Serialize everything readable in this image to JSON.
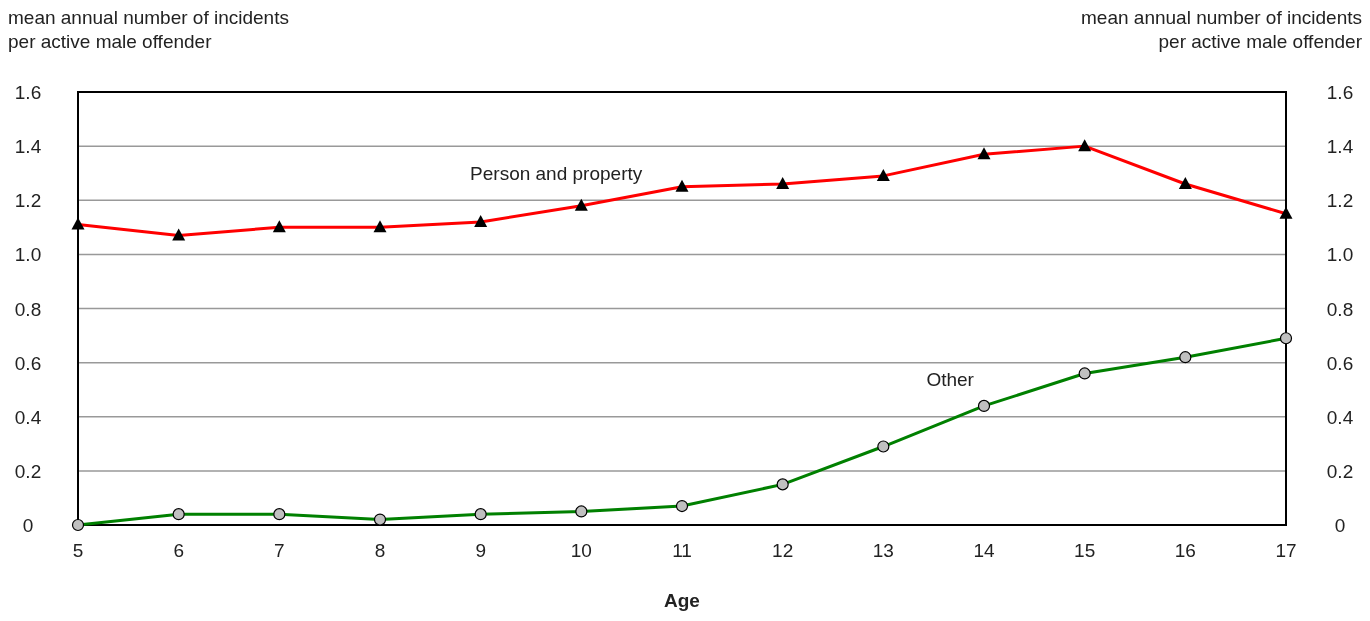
{
  "chart_data": {
    "type": "line",
    "xlabel": "Age",
    "ylabel": "mean annual number of incidents\nper active male offender",
    "y2label": "mean annual number of incidents\nper active male offender",
    "x": [
      5,
      6,
      7,
      8,
      9,
      10,
      11,
      12,
      13,
      14,
      15,
      16,
      17
    ],
    "series": [
      {
        "name": "Person and property",
        "color": "#ff0000",
        "marker": "triangle",
        "values": [
          1.11,
          1.07,
          1.1,
          1.1,
          1.12,
          1.18,
          1.25,
          1.26,
          1.29,
          1.37,
          1.4,
          1.26,
          1.15
        ]
      },
      {
        "name": "Other",
        "color": "#008000",
        "marker": "circle",
        "values": [
          0,
          0.04,
          0.04,
          0.02,
          0.04,
          0.05,
          0.07,
          0.15,
          0.29,
          0.44,
          0.56,
          0.62,
          0.69
        ]
      }
    ],
    "xlim": [
      5,
      17
    ],
    "xticks": [
      5,
      6,
      7,
      8,
      9,
      10,
      11,
      12,
      13,
      14,
      15,
      16,
      17
    ],
    "ylim": [
      0,
      1.6
    ],
    "yticks": [
      0,
      0.2,
      0.4,
      0.6,
      0.8,
      {
        "value": 1,
        "label": "1.0"
      },
      1.2,
      1.4,
      1.6
    ],
    "y2lim": [
      0,
      1.6
    ],
    "y2ticks": [
      0,
      0.2,
      0.4,
      0.6,
      0.8,
      {
        "value": 1,
        "label": "1.0"
      },
      1.2,
      1.4,
      1.6
    ],
    "grid": "y",
    "line_style": "solid"
  }
}
